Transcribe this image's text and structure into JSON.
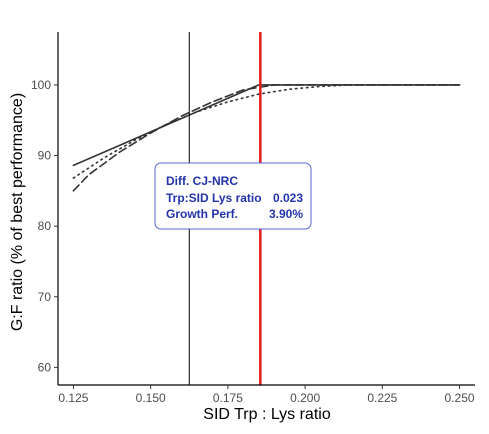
{
  "chart_data": {
    "type": "line",
    "xlabel": "SID Trp : Lys ratio",
    "ylabel": "G:F ratio (% of best performance)",
    "xlim": [
      0.12,
      0.255
    ],
    "ylim": [
      57.5,
      107.5
    ],
    "x_ticks": [
      0.125,
      0.15,
      0.175,
      0.2,
      0.225,
      0.25
    ],
    "x_tick_labels": [
      "0.125",
      "0.150",
      "0.175",
      "0.200",
      "0.225",
      "0.250"
    ],
    "y_ticks": [
      60,
      70,
      80,
      90,
      100
    ],
    "y_tick_labels": [
      "60",
      "70",
      "80",
      "90",
      "100"
    ],
    "grid": false,
    "series": [
      {
        "style": "solid",
        "color": "#333333",
        "points": [
          [
            0.125,
            88.6
          ],
          [
            0.185,
            100.0
          ],
          [
            0.25,
            100.0
          ]
        ]
      },
      {
        "style": "dashed",
        "color": "#333333",
        "points": [
          [
            0.125,
            85.0
          ],
          [
            0.13,
            87.3
          ],
          [
            0.14,
            90.5
          ],
          [
            0.15,
            93.2
          ],
          [
            0.16,
            95.6
          ],
          [
            0.17,
            97.6
          ],
          [
            0.18,
            99.3
          ],
          [
            0.19,
            100.0
          ],
          [
            0.25,
            100.0
          ]
        ]
      },
      {
        "style": "dotted",
        "color": "#333333",
        "points": [
          [
            0.125,
            86.8
          ],
          [
            0.135,
            89.7
          ],
          [
            0.145,
            92.2
          ],
          [
            0.155,
            94.4
          ],
          [
            0.165,
            96.2
          ],
          [
            0.175,
            97.6
          ],
          [
            0.185,
            98.7
          ],
          [
            0.195,
            99.4
          ],
          [
            0.205,
            99.8
          ],
          [
            0.215,
            100.0
          ],
          [
            0.25,
            100.0
          ]
        ]
      }
    ],
    "vlines": [
      {
        "x": 0.1625,
        "color": "#000000",
        "width": 1
      },
      {
        "x": 0.1855,
        "color": "#e41a1c",
        "width": 2.5
      }
    ],
    "annotation": {
      "title": "Diff. CJ-NRC",
      "rows": [
        {
          "label": "Trp:SID Lys ratio",
          "value": "0.023"
        },
        {
          "label": "Growth Perf.",
          "value": "3.90%"
        }
      ],
      "text_color": "#2233aa",
      "border_color": "#5566cc"
    }
  }
}
